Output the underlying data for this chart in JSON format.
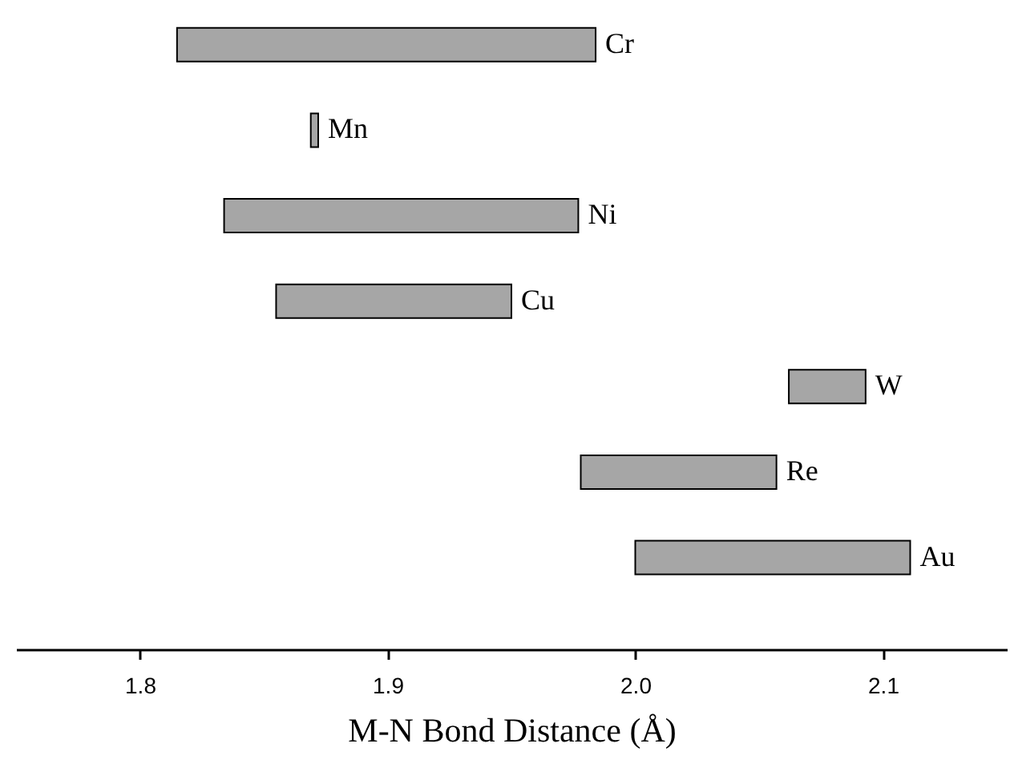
{
  "chart_data": {
    "type": "bar",
    "orientation": "horizontal",
    "xlabel": "M-N Bond Distance (Å)",
    "categories": [
      "Cr",
      "Mn",
      "Ni",
      "Cu",
      "W",
      "Re",
      "Au"
    ],
    "base": [
      1.815,
      1.869,
      1.834,
      1.855,
      2.062,
      1.978,
      2.0
    ],
    "values": [
      0.169,
      0.003,
      0.143,
      0.095,
      0.031,
      0.079,
      0.111
    ],
    "color": "#a6a6a6",
    "xlim": [
      1.75,
      2.15
    ],
    "xticks": [
      {
        "value": 1.8,
        "label": "1.8"
      },
      {
        "value": 1.9,
        "label": "1.9"
      },
      {
        "value": 2.0,
        "label": "2.0"
      },
      {
        "value": 2.1,
        "label": "2.1"
      }
    ],
    "tick_labels": "x",
    "grid": false
  }
}
